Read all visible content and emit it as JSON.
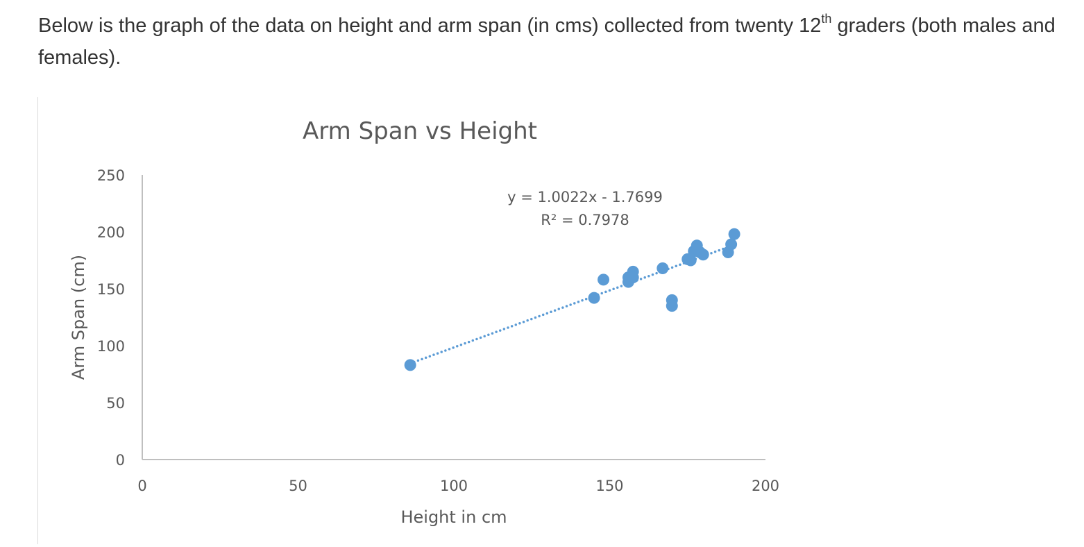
{
  "intro": {
    "before": "Below is the graph of the data on height and arm span (in cms) collected from twenty 12",
    "sup": "th",
    "after": " graders (both males and females)."
  },
  "chart_data": {
    "type": "scatter",
    "title": "Arm Span vs Height",
    "xlabel": "Height in cm",
    "ylabel": "Arm Span (cm)",
    "xlim": [
      0,
      200
    ],
    "ylim": [
      0,
      250
    ],
    "x_ticks": [
      "0",
      "50",
      "100",
      "150",
      "200"
    ],
    "y_ticks": [
      "0",
      "50",
      "100",
      "150",
      "200",
      "250"
    ],
    "grid": false,
    "legend": "none",
    "series": [
      {
        "color": "#5b9bd5",
        "points": [
          [
            86,
            83
          ],
          [
            145,
            142
          ],
          [
            148,
            158
          ],
          [
            156,
            156
          ],
          [
            156,
            160
          ],
          [
            157.5,
            165
          ],
          [
            157.5,
            160
          ],
          [
            167,
            168
          ],
          [
            170,
            140
          ],
          [
            170,
            135
          ],
          [
            175,
            176
          ],
          [
            176,
            175
          ],
          [
            177,
            183
          ],
          [
            178,
            188
          ],
          [
            179,
            182
          ],
          [
            180,
            180
          ],
          [
            188,
            182
          ],
          [
            189,
            189
          ],
          [
            190,
            198
          ],
          [
            178,
            185
          ]
        ]
      }
    ],
    "trendline": {
      "type": "linear",
      "style": "dotted",
      "color": "#5b9bd5",
      "slope": 1.0022,
      "intercept": -1.7699,
      "x_range": [
        86,
        190
      ],
      "equation_label": "y = 1.0022x - 1.7699",
      "r2_label": "R² = 0.7978"
    }
  }
}
